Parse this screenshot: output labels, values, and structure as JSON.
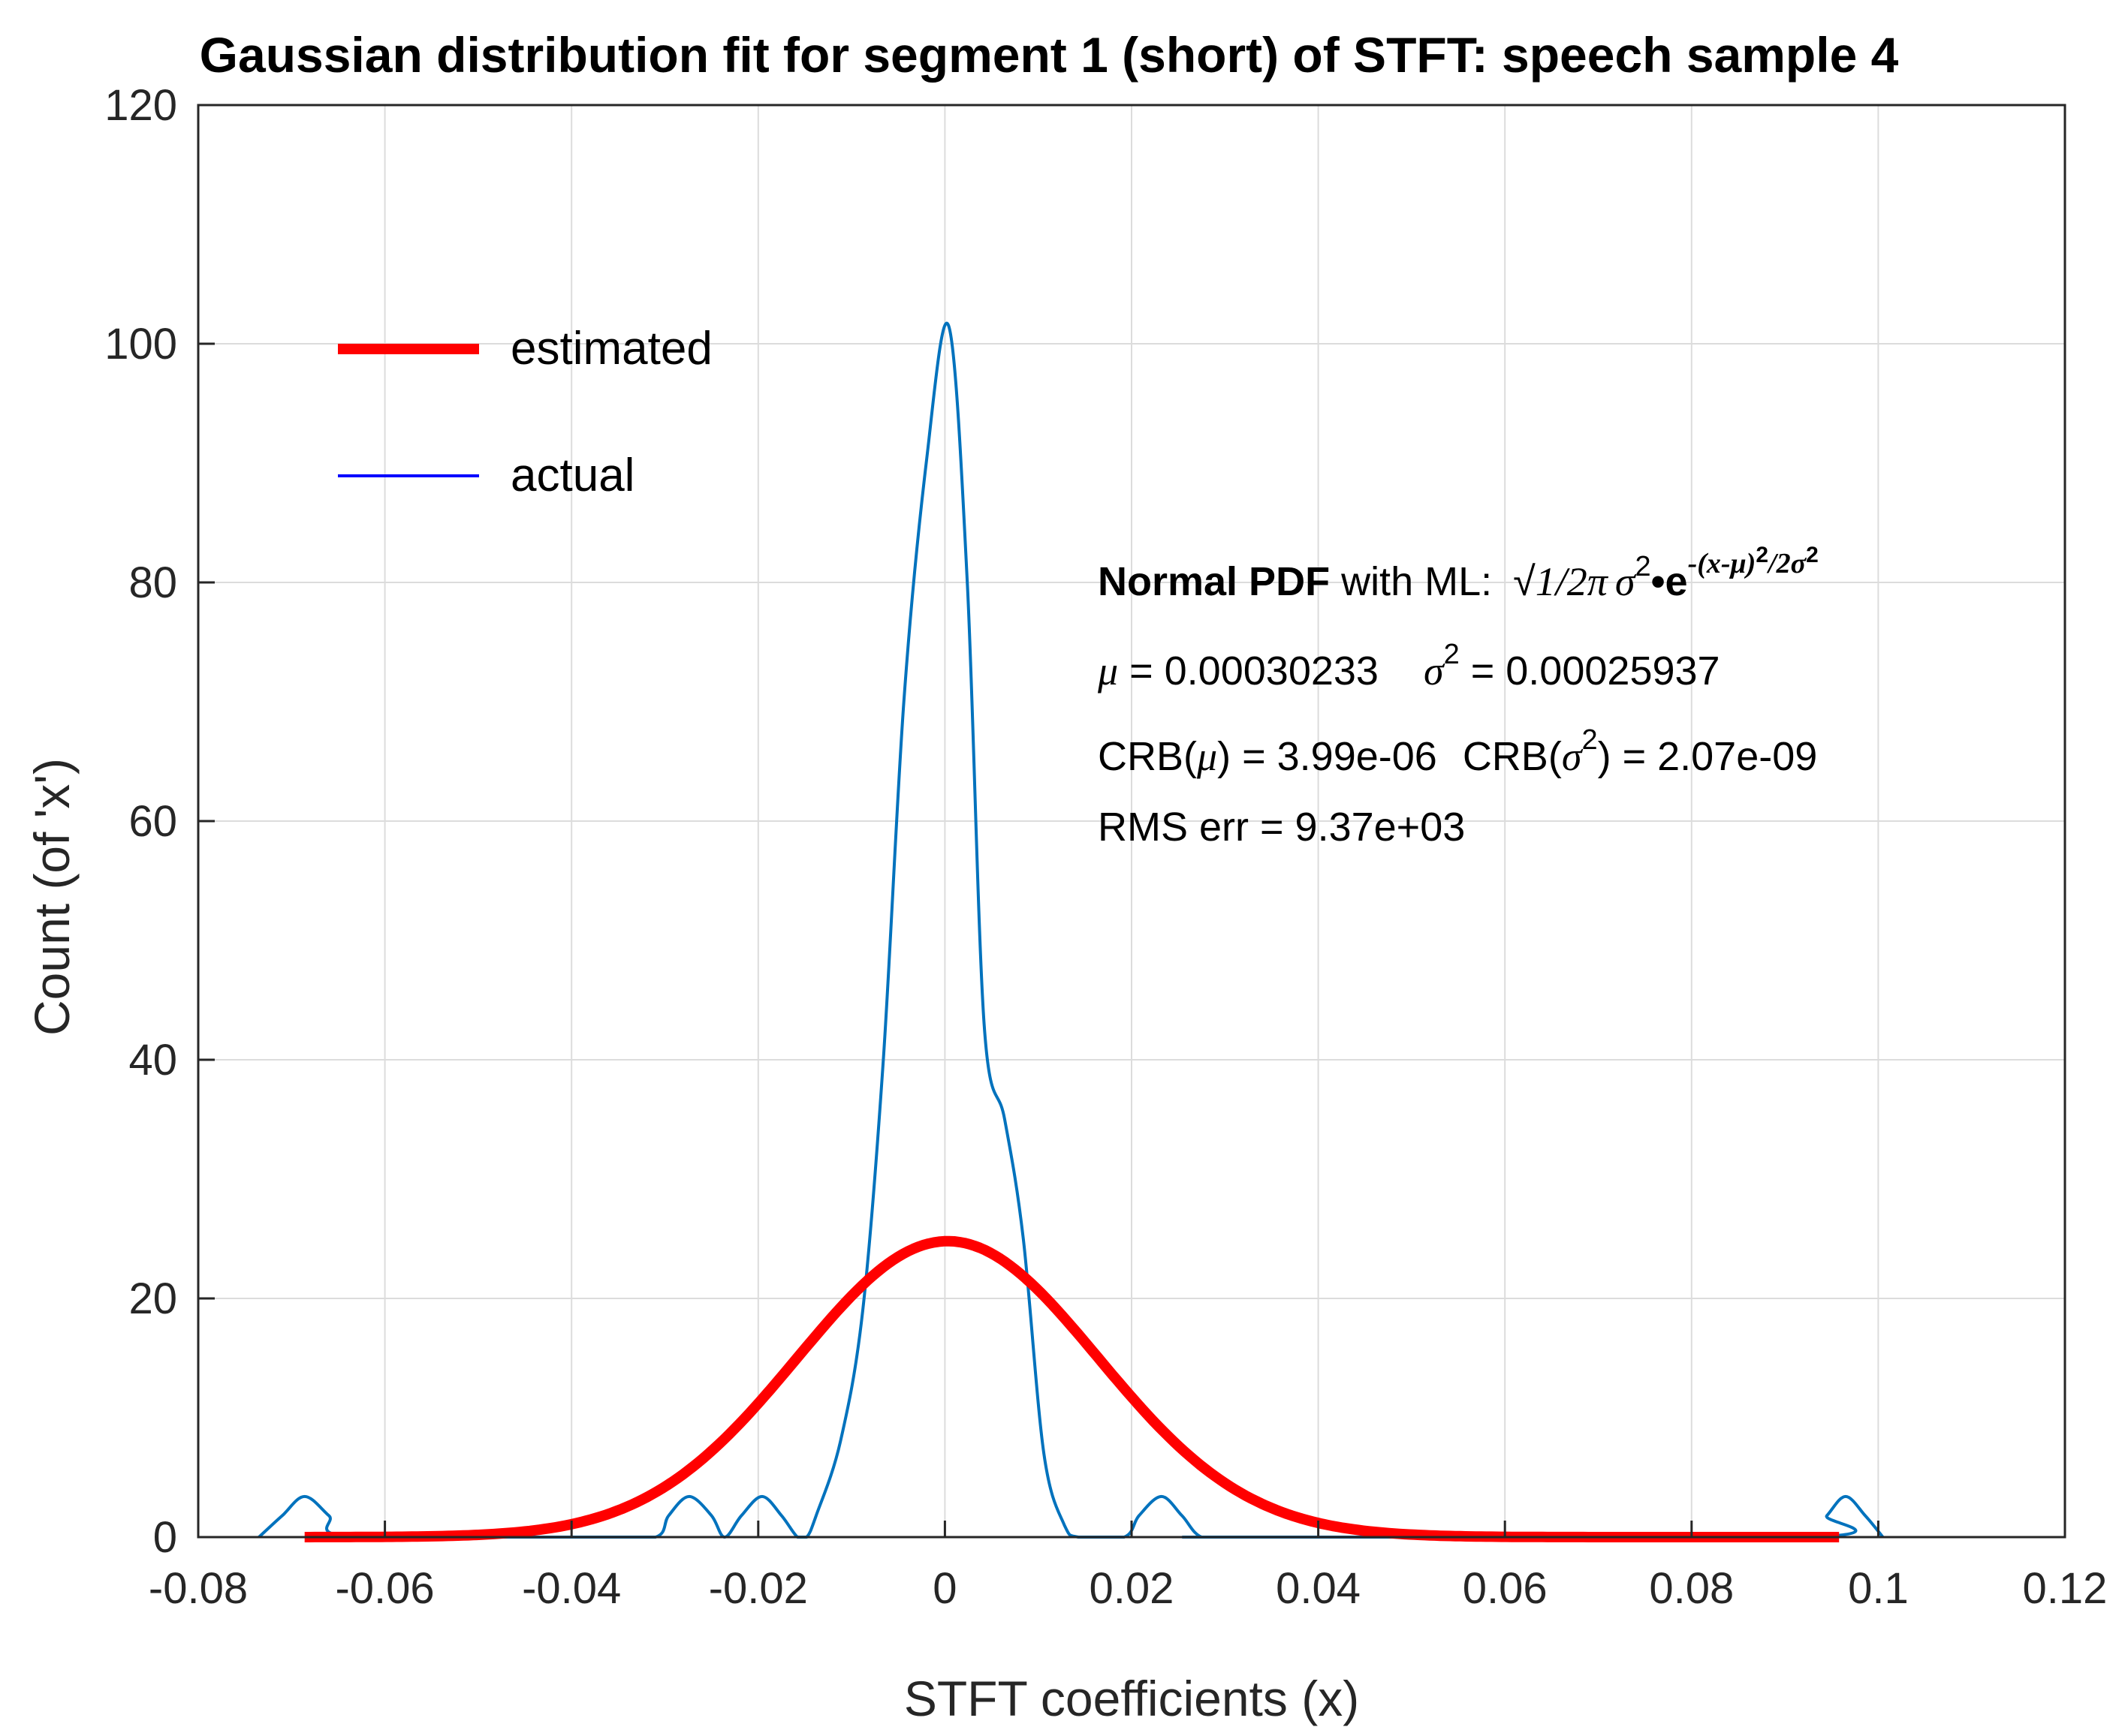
{
  "chart_data": {
    "type": "line",
    "title": "Gaussian distribution fit for segment 1 (short) of STFT: speech sample 4",
    "xlabel": "STFT coefficients (x)",
    "ylabel": "Count (of  'x')",
    "xlim": [
      -0.08,
      0.12
    ],
    "ylim": [
      0,
      120
    ],
    "xticks": [
      -0.08,
      -0.06,
      -0.04,
      -0.02,
      0,
      0.02,
      0.04,
      0.06,
      0.08,
      0.1,
      0.12
    ],
    "xtick_labels": [
      "-0.08",
      "-0.06",
      "-0.04",
      "-0.02",
      "0",
      "0.02",
      "0.04",
      "0.06",
      "0.08",
      "0.1",
      "0.12"
    ],
    "yticks": [
      0,
      20,
      40,
      60,
      80,
      100,
      120
    ],
    "ytick_labels": [
      "0",
      "20",
      "40",
      "60",
      "80",
      "100",
      "120"
    ],
    "grid": true,
    "legend_position": "top-left",
    "series": [
      {
        "name": "estimated",
        "color": "#ff0000",
        "distribution": "normal",
        "mu": 0.00030233,
        "sigma2": 0.00025937,
        "peak": 24.8,
        "x_range": [
          -0.0686,
          0.0958
        ]
      },
      {
        "name": "actual",
        "color": "#0072bd",
        "legend_color": "#0000ff",
        "x": [
          -0.0735,
          -0.071,
          -0.0686,
          -0.066,
          -0.0635,
          -0.0372,
          -0.031,
          -0.0296,
          -0.0274,
          -0.025,
          -0.0236,
          -0.0218,
          -0.0196,
          -0.0175,
          -0.0158,
          -0.0148,
          -0.0138,
          -0.0112,
          -0.0088,
          -0.0066,
          -0.0044,
          -0.002,
          0.0004,
          0.0024,
          0.0042,
          0.0064,
          0.0084,
          0.0106,
          0.0128,
          0.0143,
          0.0192,
          0.0208,
          0.0232,
          0.0254,
          0.0275,
          0.0312,
          0.0925,
          0.0945,
          0.0965,
          0.0986,
          0.1005
        ],
        "y": [
          0,
          1.8,
          3.4,
          1.8,
          0,
          0,
          0,
          1.8,
          3.4,
          1.8,
          0,
          1.8,
          3.4,
          1.8,
          0,
          0,
          1.8,
          8,
          19,
          40,
          70,
          90,
          101.5,
          80,
          43,
          35,
          25,
          7,
          1,
          0,
          0,
          1.8,
          3.4,
          1.8,
          0,
          0,
          0,
          1.8,
          3.4,
          1.8,
          0
        ]
      }
    ],
    "annotations": {
      "formula_label_bold": "Normal PDF",
      "formula_label_rest": " with ML:",
      "formula_sqrt": "√",
      "formula_base": "1/2",
      "formula_pi": "π",
      "formula_sigma": "σ",
      "formula_exp2": "2",
      "formula_dot": "•",
      "formula_e": "e",
      "formula_exponent": "-(x-μ)",
      "formula_exp_sq": "2",
      "formula_exp_tail": "/2σ",
      "formula_exp_tail_sq": "2",
      "mu_symbol": "μ",
      "mu_value": " = 0.00030233",
      "sigma2_symbol": "σ",
      "sigma2_sq": "2",
      "sigma2_value": " = 0.00025937",
      "crb_mu_prefix": "CRB(",
      "crb_mu_sym": "μ",
      "crb_mu_value": ") = 3.99e-06",
      "crb_sigma_prefix": "CRB(",
      "crb_sigma_sym": "σ",
      "crb_sigma_sq": "2",
      "crb_sigma_value": ") = 2.07e-09",
      "rms": "RMS err = 9.37e+03"
    }
  }
}
